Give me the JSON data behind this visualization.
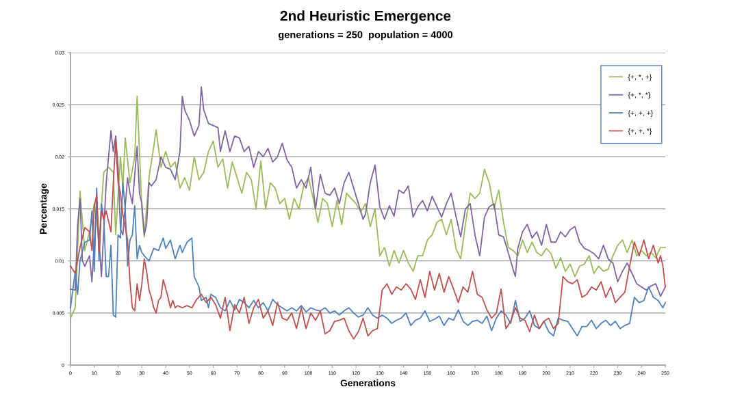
{
  "chart_data": {
    "type": "line",
    "title": "2nd Heuristic Emergence",
    "subtitle": "generations = 250  population = 4000",
    "xlabel": "Generations",
    "ylabel": "Percentage",
    "xlim": [
      0,
      250
    ],
    "xticks": [
      0,
      10,
      20,
      30,
      40,
      50,
      60,
      70,
      80,
      90,
      100,
      110,
      120,
      130,
      140,
      150,
      160,
      170,
      180,
      190,
      200,
      210,
      220,
      230,
      240,
      250
    ],
    "ylim": [
      0,
      0.03
    ],
    "yticks": [
      0,
      0.005,
      0.01,
      0.015,
      0.02,
      0.025,
      0.03
    ],
    "grid": "y",
    "legend": "top right",
    "marker": "none",
    "line_style": "solid",
    "series": [
      {
        "name": "{+, *, +}",
        "color": "#9bbb59",
        "x": [
          0,
          2,
          4,
          6,
          8,
          10,
          12,
          14,
          16,
          18,
          19,
          21,
          22,
          23,
          25,
          27,
          28,
          30,
          31,
          33,
          35,
          36,
          38,
          40,
          42,
          44,
          46,
          48,
          50,
          52,
          54,
          56,
          58,
          60,
          62,
          64,
          66,
          68,
          70,
          72,
          74,
          76,
          78,
          80,
          82,
          84,
          86,
          88,
          90,
          92,
          94,
          96,
          98,
          100,
          102,
          104,
          106,
          108,
          110,
          112,
          114,
          116,
          118,
          120,
          122,
          124,
          126,
          128,
          130,
          132,
          134,
          136,
          138,
          140,
          142,
          144,
          146,
          148,
          150,
          152,
          154,
          156,
          158,
          160,
          162,
          164,
          166,
          168,
          170,
          172,
          174,
          176,
          178,
          180,
          182,
          184,
          186,
          188,
          190,
          192,
          194,
          196,
          198,
          200,
          202,
          204,
          206,
          208,
          210,
          212,
          214,
          216,
          218,
          220,
          222,
          224,
          226,
          228,
          230,
          232,
          234,
          236,
          238,
          240,
          242,
          244,
          246,
          248,
          250
        ],
        "values": [
          0.0045,
          0.0055,
          0.0167,
          0.011,
          0.0128,
          0.0155,
          0.012,
          0.0185,
          0.019,
          0.0185,
          0.0125,
          0.02,
          0.017,
          0.0218,
          0.0175,
          0.02,
          0.0258,
          0.015,
          0.0123,
          0.018,
          0.021,
          0.0226,
          0.019,
          0.0205,
          0.019,
          0.0195,
          0.017,
          0.018,
          0.0168,
          0.02,
          0.0178,
          0.0185,
          0.0205,
          0.0215,
          0.019,
          0.0198,
          0.017,
          0.0195,
          0.018,
          0.0165,
          0.0185,
          0.0178,
          0.015,
          0.0196,
          0.015,
          0.0175,
          0.017,
          0.0155,
          0.016,
          0.014,
          0.016,
          0.015,
          0.0172,
          0.018,
          0.016,
          0.0137,
          0.016,
          0.0155,
          0.0133,
          0.0158,
          0.0135,
          0.0165,
          0.016,
          0.0155,
          0.0147,
          0.0155,
          0.0133,
          0.015,
          0.0105,
          0.0113,
          0.0095,
          0.011,
          0.0098,
          0.011,
          0.0098,
          0.009,
          0.0105,
          0.0105,
          0.012,
          0.0125,
          0.0137,
          0.014,
          0.0125,
          0.014,
          0.0112,
          0.0102,
          0.0135,
          0.0165,
          0.016,
          0.0165,
          0.0188,
          0.0175,
          0.015,
          0.0168,
          0.0137,
          0.0113,
          0.011,
          0.0105,
          0.012,
          0.0108,
          0.0118,
          0.0108,
          0.0105,
          0.0112,
          0.0107,
          0.0093,
          0.0103,
          0.009,
          0.0097,
          0.0085,
          0.0095,
          0.0097,
          0.0105,
          0.0088,
          0.0095,
          0.009,
          0.0092,
          0.0105,
          0.0115,
          0.012,
          0.0108,
          0.012,
          0.0105,
          0.011,
          0.0105,
          0.0108,
          0.0103,
          0.0113,
          0.0113
        ]
      },
      {
        "name": "{+, *, *}",
        "color": "#8064a2",
        "x": [
          0,
          2,
          3,
          4,
          5,
          6,
          8,
          9,
          11,
          13,
          15,
          17,
          18,
          19,
          20,
          21,
          22,
          24,
          25,
          26,
          28,
          29,
          30,
          31,
          32,
          33,
          34,
          36,
          38,
          40,
          42,
          44,
          46,
          47,
          48,
          50,
          52,
          54,
          55,
          56,
          58,
          60,
          62,
          63,
          65,
          67,
          69,
          71,
          73,
          75,
          77,
          79,
          81,
          83,
          85,
          87,
          89,
          91,
          93,
          95,
          97,
          99,
          101,
          103,
          105,
          107,
          109,
          111,
          113,
          115,
          117,
          119,
          121,
          123,
          124,
          126,
          128,
          130,
          132,
          134,
          136,
          138,
          140,
          142,
          144,
          146,
          148,
          150,
          152,
          154,
          156,
          158,
          160,
          162,
          164,
          166,
          168,
          170,
          172,
          174,
          176,
          178,
          180,
          182,
          184,
          186,
          187,
          188,
          190,
          192,
          194,
          196,
          198,
          200,
          202,
          204,
          206,
          208,
          210,
          212,
          214,
          216,
          218,
          220,
          222,
          224,
          226,
          228,
          230,
          232,
          234,
          236,
          238,
          240,
          242,
          244,
          246,
          248,
          250
        ],
        "values": [
          0.0073,
          0.0072,
          0.0135,
          0.016,
          0.01,
          0.0095,
          0.0105,
          0.008,
          0.0155,
          0.0085,
          0.0175,
          0.0225,
          0.0205,
          0.022,
          0.019,
          0.013,
          0.0125,
          0.018,
          0.0165,
          0.0155,
          0.021,
          0.0165,
          0.0155,
          0.0125,
          0.0135,
          0.0175,
          0.0172,
          0.0178,
          0.02,
          0.019,
          0.0188,
          0.0178,
          0.0205,
          0.0258,
          0.0245,
          0.0235,
          0.022,
          0.023,
          0.0267,
          0.0245,
          0.0232,
          0.023,
          0.0228,
          0.0205,
          0.0225,
          0.0205,
          0.022,
          0.0218,
          0.0205,
          0.021,
          0.019,
          0.0205,
          0.02,
          0.0208,
          0.0195,
          0.02,
          0.0213,
          0.0197,
          0.019,
          0.017,
          0.0178,
          0.017,
          0.019,
          0.015,
          0.0183,
          0.0165,
          0.0163,
          0.017,
          0.0155,
          0.0175,
          0.0185,
          0.017,
          0.0155,
          0.014,
          0.0145,
          0.0175,
          0.0192,
          0.0152,
          0.014,
          0.0153,
          0.0143,
          0.0168,
          0.0165,
          0.0172,
          0.0142,
          0.0152,
          0.0158,
          0.0148,
          0.0162,
          0.0152,
          0.0142,
          0.0155,
          0.0165,
          0.0143,
          0.0123,
          0.015,
          0.0155,
          0.0125,
          0.0105,
          0.0142,
          0.0152,
          0.0155,
          0.0125,
          0.0123,
          0.0108,
          0.0092,
          0.0085,
          0.0112,
          0.0128,
          0.0135,
          0.0122,
          0.0128,
          0.0115,
          0.0135,
          0.0118,
          0.0118,
          0.0128,
          0.0123,
          0.013,
          0.0133,
          0.0118,
          0.0112,
          0.011,
          0.0107,
          0.0102,
          0.0115,
          0.0102,
          0.0098,
          0.008,
          0.009,
          0.0098,
          0.0088,
          0.0078,
          0.0075,
          0.0072,
          0.0076,
          0.0078,
          0.0066,
          0.0075
        ]
      },
      {
        "name": "{+, +, +}",
        "color": "#4f81bd",
        "x": [
          0,
          2,
          3,
          4,
          6,
          8,
          9,
          10,
          11,
          12,
          13,
          14,
          15,
          16,
          17,
          18,
          19,
          20,
          21,
          22,
          23,
          24,
          25,
          26,
          27,
          28,
          29,
          30,
          31,
          33,
          35,
          37,
          39,
          40,
          42,
          44,
          46,
          47,
          49,
          51,
          52,
          54,
          55,
          57,
          58,
          59,
          61,
          63,
          65,
          67,
          69,
          71,
          73,
          75,
          77,
          79,
          81,
          83,
          85,
          87,
          89,
          91,
          93,
          95,
          97,
          99,
          101,
          103,
          105,
          107,
          109,
          111,
          113,
          115,
          117,
          119,
          121,
          123,
          125,
          127,
          129,
          131,
          133,
          135,
          137,
          139,
          141,
          143,
          145,
          147,
          149,
          151,
          153,
          155,
          157,
          159,
          161,
          163,
          165,
          167,
          169,
          171,
          173,
          175,
          177,
          179,
          181,
          183,
          185,
          187,
          189,
          191,
          193,
          195,
          197,
          199,
          201,
          203,
          205,
          207,
          209,
          211,
          213,
          215,
          217,
          219,
          221,
          223,
          225,
          227,
          229,
          231,
          233,
          235,
          237,
          239,
          241,
          243,
          245,
          247,
          249,
          250
        ],
        "values": [
          0.0055,
          0.009,
          0.0068,
          0.01,
          0.0118,
          0.012,
          0.0148,
          0.009,
          0.017,
          0.01,
          0.0155,
          0.014,
          0.0085,
          0.0085,
          0.0115,
          0.0048,
          0.0046,
          0.0125,
          0.0122,
          0.0175,
          0.015,
          0.0095,
          0.012,
          0.0125,
          0.0153,
          0.0102,
          0.0115,
          0.0108,
          0.0105,
          0.01,
          0.0112,
          0.011,
          0.0122,
          0.0112,
          0.012,
          0.0102,
          0.0115,
          0.0108,
          0.0118,
          0.0122,
          0.0085,
          0.0075,
          0.0062,
          0.0065,
          0.0055,
          0.0068,
          0.0065,
          0.0055,
          0.0052,
          0.0062,
          0.0053,
          0.0063,
          0.006,
          0.0055,
          0.0062,
          0.0055,
          0.006,
          0.0052,
          0.0063,
          0.0058,
          0.0055,
          0.0052,
          0.0055,
          0.0052,
          0.0057,
          0.0051,
          0.0055,
          0.0053,
          0.0052,
          0.0055,
          0.005,
          0.0052,
          0.0048,
          0.0052,
          0.0055,
          0.005,
          0.0046,
          0.0048,
          0.0055,
          0.0048,
          0.0045,
          0.0048,
          0.0045,
          0.004,
          0.0043,
          0.0045,
          0.005,
          0.0038,
          0.0043,
          0.0045,
          0.0052,
          0.0042,
          0.0044,
          0.0047,
          0.0038,
          0.0045,
          0.0043,
          0.0053,
          0.0042,
          0.0038,
          0.0042,
          0.0043,
          0.004,
          0.0047,
          0.0033,
          0.0045,
          0.0052,
          0.0048,
          0.004,
          0.0062,
          0.0042,
          0.0045,
          0.0052,
          0.0038,
          0.0035,
          0.0042,
          0.0032,
          0.0028,
          0.0045,
          0.0043,
          0.0042,
          0.0035,
          0.0028,
          0.0037,
          0.0037,
          0.0043,
          0.0035,
          0.004,
          0.0043,
          0.0038,
          0.0042,
          0.0035,
          0.0038,
          0.004,
          0.0065,
          0.006,
          0.0062,
          0.0075,
          0.0065,
          0.0062,
          0.0055,
          0.006
        ]
      },
      {
        "name": "{+, +, *}",
        "color": "#c0504d",
        "x": [
          0,
          2,
          4,
          6,
          8,
          9,
          10,
          11,
          12,
          13,
          14,
          15,
          17,
          18,
          19,
          20,
          21,
          22,
          24,
          25,
          26,
          27,
          28,
          29,
          30,
          31,
          32,
          33,
          34,
          35,
          36,
          37,
          38,
          39,
          41,
          42,
          43,
          44,
          45,
          47,
          49,
          51,
          53,
          55,
          57,
          59,
          61,
          63,
          65,
          67,
          69,
          71,
          73,
          75,
          77,
          79,
          81,
          83,
          85,
          87,
          89,
          91,
          93,
          95,
          97,
          99,
          101,
          103,
          105,
          107,
          109,
          111,
          113,
          115,
          117,
          119,
          121,
          123,
          125,
          127,
          129,
          131,
          133,
          135,
          137,
          139,
          141,
          143,
          145,
          147,
          149,
          151,
          153,
          155,
          157,
          159,
          161,
          163,
          165,
          167,
          169,
          171,
          173,
          175,
          177,
          179,
          181,
          183,
          185,
          187,
          189,
          191,
          193,
          195,
          197,
          199,
          201,
          203,
          205,
          207,
          209,
          211,
          213,
          215,
          217,
          219,
          221,
          223,
          225,
          227,
          229,
          231,
          233,
          235,
          237,
          239,
          241,
          243,
          245,
          247,
          248,
          249,
          250
        ],
        "values": [
          0.0095,
          0.0088,
          0.0113,
          0.0132,
          0.0128,
          0.011,
          0.0153,
          0.0163,
          0.0108,
          0.0148,
          0.014,
          0.0148,
          0.0128,
          0.0175,
          0.0215,
          0.0175,
          0.0165,
          0.0145,
          0.012,
          0.008,
          0.0055,
          0.0052,
          0.0078,
          0.0062,
          0.0078,
          0.0102,
          0.009,
          0.0072,
          0.0065,
          0.0055,
          0.005,
          0.0062,
          0.0065,
          0.0082,
          0.0065,
          0.0055,
          0.0062,
          0.0055,
          0.0057,
          0.0055,
          0.0057,
          0.0055,
          0.0063,
          0.0068,
          0.006,
          0.0065,
          0.0058,
          0.0045,
          0.0065,
          0.0033,
          0.0058,
          0.005,
          0.0065,
          0.004,
          0.0055,
          0.0063,
          0.0045,
          0.0052,
          0.0038,
          0.006,
          0.0045,
          0.0043,
          0.005,
          0.0035,
          0.0055,
          0.0035,
          0.005,
          0.0043,
          0.0052,
          0.003,
          0.0033,
          0.0042,
          0.0043,
          0.0045,
          0.0033,
          0.0025,
          0.0032,
          0.0045,
          0.0028,
          0.0033,
          0.0035,
          0.0072,
          0.0078,
          0.0068,
          0.0075,
          0.0072,
          0.0078,
          0.0073,
          0.0063,
          0.0082,
          0.0065,
          0.009,
          0.0072,
          0.0088,
          0.007,
          0.0085,
          0.0073,
          0.006,
          0.0075,
          0.007,
          0.009,
          0.0068,
          0.0065,
          0.0053,
          0.0045,
          0.005,
          0.0073,
          0.0035,
          0.0042,
          0.0055,
          0.0045,
          0.0043,
          0.0032,
          0.0048,
          0.0035,
          0.0042,
          0.0045,
          0.0035,
          0.004,
          0.0085,
          0.008,
          0.0078,
          0.0082,
          0.0065,
          0.0068,
          0.0075,
          0.0072,
          0.008,
          0.0065,
          0.0075,
          0.006,
          0.0065,
          0.007,
          0.0095,
          0.0118,
          0.0105,
          0.012,
          0.0102,
          0.0115,
          0.0098,
          0.0105,
          0.0095,
          0.0075
        ]
      }
    ]
  }
}
